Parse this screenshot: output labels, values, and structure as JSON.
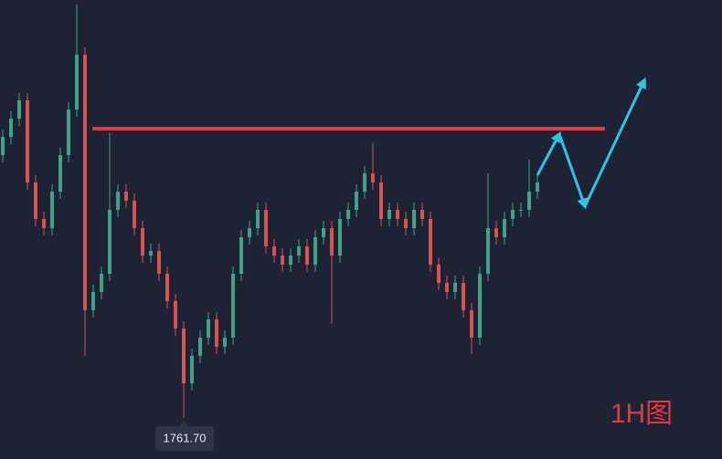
{
  "chart_data": {
    "type": "candlestick",
    "open": [
      1787.62,
      1789.42,
      1791.22,
      1793.02,
      1784.92,
      1781.32,
      1780.42,
      1784.02,
      1787.62,
      1792.12,
      1797.52,
      1772.32,
      1774.12,
      1775.92,
      1782.22,
      1784.02,
      1783.12,
      1780.42,
      1777.72,
      1778.17,
      1775.92,
      1773.22,
      1770.52,
      1765.12,
      1767.82,
      1769.62,
      1771.42,
      1768.72,
      1769.62,
      1775.92,
      1779.52,
      1780.42,
      1782.22,
      1778.62,
      1777.72,
      1776.82,
      1777.72,
      1778.62,
      1776.82,
      1779.52,
      1780.42,
      1777.72,
      1781.32,
      1782.22,
      1784.02,
      1785.82,
      1784.92,
      1781.32,
      1782.22,
      1781.32,
      1780.42,
      1782.22,
      1781.32,
      1776.82,
      1775.02,
      1774.12,
      1775.02,
      1772.32,
      1769.62,
      1775.92,
      1780.42,
      1779.52,
      1781.32,
      1782.22,
      1782.22,
      1784.02
    ],
    "high": [
      1790.14,
      1791.94,
      1793.74,
      1793.74,
      1785.64,
      1782.04,
      1784.74,
      1788.34,
      1792.84,
      1802.47,
      1798.24,
      1774.84,
      1776.64,
      1789.87,
      1784.74,
      1784.74,
      1783.84,
      1781.14,
      1778.89,
      1778.89,
      1776.64,
      1773.94,
      1771.24,
      1768.54,
      1770.34,
      1772.14,
      1772.14,
      1770.34,
      1776.64,
      1780.24,
      1781.14,
      1782.94,
      1782.94,
      1779.34,
      1778.44,
      1778.44,
      1779.34,
      1779.34,
      1780.24,
      1781.14,
      1781.14,
      1782.04,
      1782.94,
      1784.74,
      1786.54,
      1788.84,
      1785.64,
      1782.94,
      1782.94,
      1782.04,
      1782.94,
      1782.94,
      1782.04,
      1777.54,
      1775.74,
      1775.74,
      1775.74,
      1773.04,
      1776.64,
      1785.82,
      1781.14,
      1782.04,
      1782.94,
      1782.94,
      1787.17,
      1785.64
    ],
    "low": [
      1786.9,
      1788.7,
      1790.5,
      1784.2,
      1780.6,
      1779.7,
      1779.7,
      1783.3,
      1786.9,
      1791.4,
      1767.82,
      1771.6,
      1773.4,
      1775.2,
      1781.5,
      1782.4,
      1779.7,
      1777.0,
      1777.0,
      1775.2,
      1772.5,
      1769.8,
      1761.7,
      1764.4,
      1767.1,
      1768.9,
      1768.0,
      1768.0,
      1768.9,
      1775.2,
      1778.8,
      1779.7,
      1777.9,
      1777.0,
      1776.1,
      1776.1,
      1777.0,
      1776.1,
      1776.1,
      1778.8,
      1770.97,
      1777.0,
      1780.6,
      1781.5,
      1783.3,
      1784.2,
      1780.6,
      1780.6,
      1780.6,
      1779.7,
      1779.7,
      1780.6,
      1776.1,
      1774.3,
      1773.4,
      1773.4,
      1771.6,
      1768.0,
      1768.9,
      1775.2,
      1778.8,
      1778.8,
      1780.6,
      1781.5,
      1781.5,
      1783.3
    ],
    "close": [
      1789.42,
      1791.22,
      1793.02,
      1784.92,
      1781.32,
      1780.42,
      1784.02,
      1787.62,
      1792.12,
      1797.52,
      1772.32,
      1774.12,
      1775.92,
      1782.22,
      1784.02,
      1783.12,
      1780.42,
      1777.72,
      1778.17,
      1775.92,
      1773.22,
      1770.52,
      1765.12,
      1767.82,
      1769.62,
      1771.42,
      1768.72,
      1769.62,
      1775.92,
      1779.52,
      1780.42,
      1782.22,
      1778.62,
      1777.72,
      1776.82,
      1777.72,
      1778.62,
      1776.82,
      1779.52,
      1780.42,
      1777.72,
      1781.32,
      1782.22,
      1784.02,
      1785.82,
      1784.92,
      1781.32,
      1782.22,
      1781.32,
      1780.42,
      1782.22,
      1781.32,
      1776.82,
      1775.02,
      1774.12,
      1775.02,
      1772.32,
      1769.62,
      1775.92,
      1780.42,
      1779.52,
      1781.32,
      1782.22,
      1782.22,
      1784.02,
      1784.92
    ],
    "up_color": "#3fa387",
    "down_color": "#d9534f",
    "ylim": [
      1757.65,
      1802.92
    ],
    "levels": [
      {
        "value": 1790.23,
        "color": "#e8363d"
      }
    ],
    "projection": {
      "x": [
        65,
        67.67,
        70.78,
        78
      ],
      "values": [
        1785.64,
        1789.69,
        1782.58,
        1795.0
      ],
      "color": "#2ec4e4"
    },
    "low_annotation": {
      "value": 1761.7,
      "label": "1761.70"
    },
    "timeframe": "1H图"
  }
}
